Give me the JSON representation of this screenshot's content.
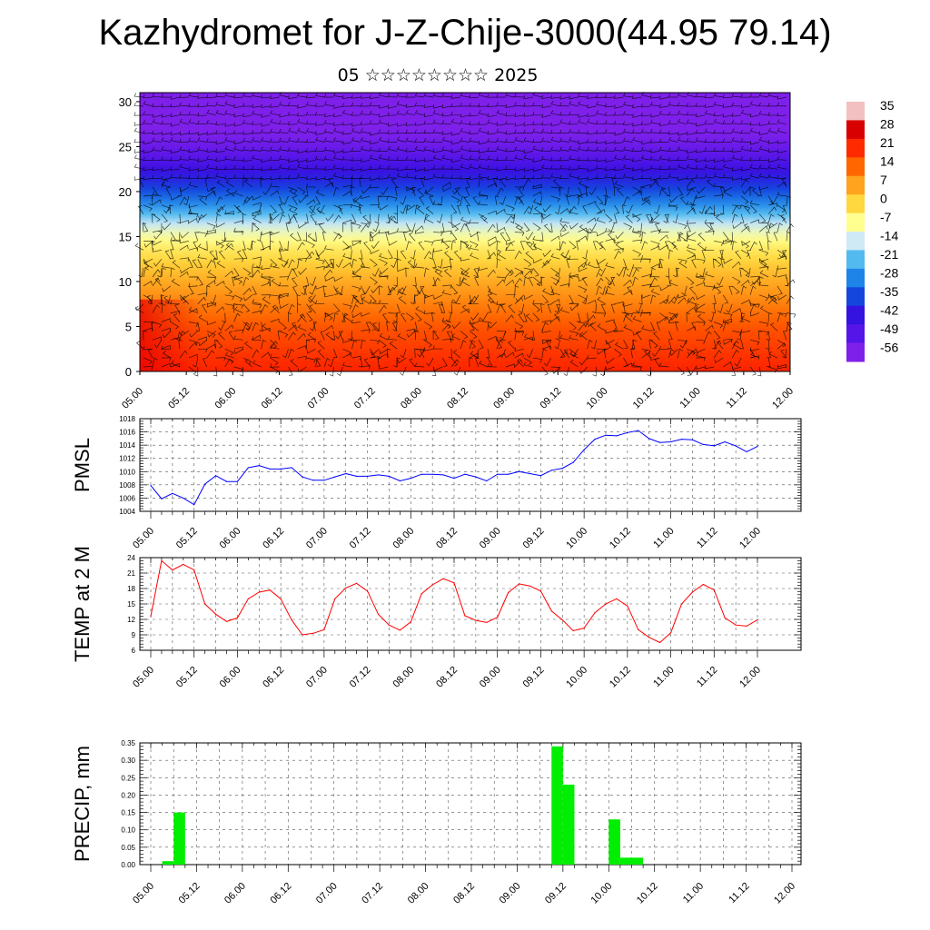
{
  "title": "Kazhydromet for J-Z-Chije-3000(44.95 79.14)",
  "subtitle": "05 ☆☆☆☆☆☆☆☆ 2025",
  "colors": {
    "pmsl_line": "#0000ff",
    "temp_line": "#ff0000",
    "precip_bar": "#00ee00",
    "wind_barb": "#000000"
  },
  "chart_data": [
    {
      "type": "heatmap",
      "name": "cross-section",
      "x_tick_labels": [
        "05.00",
        "05.12",
        "06.00",
        "06.12",
        "07.00",
        "07.12",
        "08.00",
        "08.12",
        "09.00",
        "09.12",
        "10.00",
        "10.12",
        "11.00",
        "11.12",
        "12.00"
      ],
      "y_ticks": [
        0,
        5,
        10,
        15,
        20,
        25,
        30
      ],
      "ylim": [
        0,
        31
      ],
      "colorbar_labels": [
        "35",
        "28",
        "21",
        "14",
        "7",
        "0",
        "-7",
        "-14",
        "-21",
        "-28",
        "-35",
        "-42",
        "-49",
        "-56"
      ],
      "colorbar_colors": [
        "#f2c0c0",
        "#d80000",
        "#ff2a00",
        "#ff6600",
        "#ffa21e",
        "#ffd73e",
        "#ffff90",
        "#cfeaf5",
        "#53baf0",
        "#1e84e8",
        "#1446de",
        "#3412e0",
        "#5515e8",
        "#7f20ea"
      ],
      "temperature_levels": [
        [
          0,
          22
        ],
        [
          5,
          16
        ],
        [
          10,
          6
        ],
        [
          14,
          -4
        ],
        [
          16,
          -12
        ],
        [
          18,
          -24
        ],
        [
          20,
          -34
        ],
        [
          22,
          -42
        ],
        [
          24,
          -50
        ],
        [
          26,
          -55
        ],
        [
          28,
          -58
        ],
        [
          31,
          -60
        ]
      ]
    },
    {
      "type": "line",
      "name": "PMSL",
      "ylabel": "PMSL",
      "x_tick_labels": [
        "05.00",
        "05.12",
        "06.00",
        "06.12",
        "07.00",
        "07.12",
        "08.00",
        "08.12",
        "09.00",
        "09.12",
        "10.00",
        "10.12",
        "11.00",
        "11.12",
        "12.00"
      ],
      "ylim": [
        1004,
        1018
      ],
      "y_ticks": [
        1004,
        1006,
        1008,
        1010,
        1012,
        1014,
        1016,
        1018
      ],
      "x_hours": [
        0,
        3,
        6,
        9,
        12,
        15,
        18,
        21,
        24,
        27,
        30,
        33,
        36,
        39,
        42,
        45,
        48,
        51,
        54,
        57,
        60,
        63,
        66,
        69,
        72,
        75,
        78,
        81,
        84,
        87,
        90,
        93,
        96,
        99,
        102,
        105,
        108,
        111,
        114,
        117,
        120,
        123,
        126,
        129,
        132,
        135,
        138,
        141,
        144,
        147,
        150,
        153,
        156,
        159,
        162,
        165,
        168
      ],
      "values": [
        1007.9,
        1005.9,
        1006.7,
        1006.0,
        1005.0,
        1008.1,
        1009.4,
        1008.5,
        1008.5,
        1010.6,
        1010.9,
        1010.4,
        1010.4,
        1010.6,
        1009.2,
        1008.7,
        1008.7,
        1009.2,
        1009.7,
        1009.3,
        1009.3,
        1009.5,
        1009.3,
        1008.6,
        1009.0,
        1009.6,
        1009.6,
        1009.5,
        1009.0,
        1009.6,
        1009.2,
        1008.6,
        1009.6,
        1009.6,
        1010.0,
        1009.7,
        1009.4,
        1010.2,
        1010.5,
        1011.4,
        1013.3,
        1014.9,
        1015.5,
        1015.4,
        1015.9,
        1016.2,
        1015.0,
        1014.4,
        1014.5,
        1014.9,
        1014.8,
        1014.1,
        1013.9,
        1014.5,
        1013.9,
        1013.0,
        1013.8
      ]
    },
    {
      "type": "line",
      "name": "TEMP at 2 M",
      "ylabel": "TEMP at 2 M",
      "x_tick_labels": [
        "05.00",
        "05.12",
        "06.00",
        "06.12",
        "07.00",
        "07.12",
        "08.00",
        "08.12",
        "09.00",
        "09.12",
        "10.00",
        "10.12",
        "11.00",
        "11.12",
        "12.00"
      ],
      "ylim": [
        6,
        24
      ],
      "y_ticks": [
        6,
        9,
        12,
        15,
        18,
        21,
        24
      ],
      "x_hours": [
        0,
        3,
        6,
        9,
        12,
        15,
        18,
        21,
        24,
        27,
        30,
        33,
        36,
        39,
        42,
        45,
        48,
        51,
        54,
        57,
        60,
        63,
        66,
        69,
        72,
        75,
        78,
        81,
        84,
        87,
        90,
        93,
        96,
        99,
        102,
        105,
        108,
        111,
        114,
        117,
        120,
        123,
        126,
        129,
        132,
        135,
        138,
        141,
        144,
        147,
        150,
        153,
        156,
        159,
        162,
        165,
        168
      ],
      "values": [
        12.6,
        23.4,
        21.6,
        22.7,
        21.6,
        15.0,
        13.0,
        11.6,
        12.3,
        16.0,
        17.3,
        17.7,
        16.0,
        11.9,
        9.0,
        9.3,
        10.0,
        16.0,
        18.1,
        19.0,
        17.5,
        13.0,
        10.9,
        9.9,
        11.5,
        17.0,
        18.7,
        19.9,
        19.1,
        12.7,
        11.8,
        11.4,
        12.4,
        17.2,
        18.9,
        18.5,
        17.5,
        13.6,
        11.9,
        9.8,
        10.3,
        13.3,
        15.0,
        16.0,
        14.6,
        10.0,
        8.5,
        7.5,
        9.4,
        15.0,
        17.3,
        18.8,
        17.7,
        12.3,
        10.9,
        10.7,
        11.9
      ]
    },
    {
      "type": "bar",
      "name": "PRECIP, mm",
      "ylabel": "PRECIP, mm",
      "x_tick_labels": [
        "05.00",
        "05.12",
        "06.00",
        "06.12",
        "07.00",
        "07.12",
        "08.00",
        "08.12",
        "09.00",
        "09.12",
        "10.00",
        "10.12",
        "11.00",
        "11.12",
        "12.00"
      ],
      "ylim": [
        0,
        0.35
      ],
      "y_ticks": [
        "0.00",
        "0.05",
        "0.10",
        "0.15",
        "0.20",
        "0.25",
        "0.30",
        "0.35"
      ],
      "bar_start_hours": [
        0,
        3,
        6,
        9,
        12,
        15,
        18,
        21,
        24,
        27,
        30,
        33,
        36,
        39,
        42,
        45,
        48,
        51,
        54,
        57,
        60,
        63,
        66,
        69,
        72,
        75,
        78,
        81,
        84,
        87,
        90,
        93,
        96,
        99,
        102,
        105,
        108,
        111,
        114,
        117,
        120,
        123,
        126,
        129,
        132,
        135,
        138,
        141,
        144,
        147,
        150,
        153,
        156,
        159,
        162,
        165
      ],
      "values": [
        0,
        0.01,
        0.15,
        0,
        0,
        0,
        0,
        0,
        0,
        0,
        0,
        0,
        0,
        0,
        0,
        0,
        0,
        0,
        0,
        0,
        0,
        0,
        0,
        0,
        0,
        0,
        0,
        0,
        0,
        0,
        0,
        0,
        0,
        0,
        0,
        0.34,
        0.23,
        0,
        0,
        0,
        0.13,
        0.02,
        0.02,
        0,
        0,
        0,
        0,
        0,
        0,
        0,
        0,
        0,
        0,
        0,
        0,
        0
      ]
    }
  ]
}
